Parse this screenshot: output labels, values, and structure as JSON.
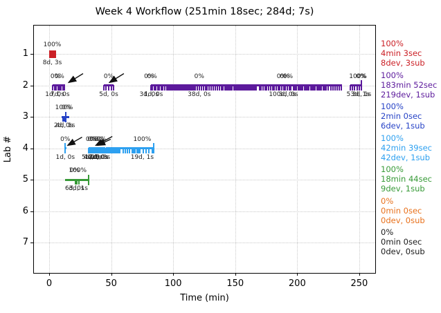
{
  "chart_data": {
    "type": "scatter",
    "subtype": "event-timeline",
    "title": "Week 4 Workflow (251min 18sec; 284d; 7s)",
    "xlabel": "Time (min)",
    "ylabel": "Lab #",
    "xticks": [
      0,
      50,
      100,
      150,
      200,
      250
    ],
    "rows": [
      1,
      2,
      3,
      4,
      5,
      6,
      7
    ],
    "xlim": [
      -12.3,
      264
    ],
    "grid": true,
    "legend_position": "right",
    "series": [
      {
        "lab": 1,
        "color": "#cb2026",
        "summary": {
          "percent": "100%",
          "time": "4min 3sec",
          "devsub": "8dev, 3sub"
        },
        "clusters": [
          {
            "start": 0,
            "end": 5.6,
            "tick_style": "center",
            "ticks": [
              {
                "from": 0.3,
                "to": 5.5,
                "step": 0.75
              }
            ],
            "tall": [],
            "pct_labels": [
              {
                "m": 2.5,
                "text": "100%"
              }
            ],
            "dev_labels": [
              {
                "m": 2.5,
                "text": "8d, 3s"
              }
            ]
          }
        ]
      },
      {
        "lab": 2,
        "color": "#5c1a9c",
        "summary": {
          "percent": "100%",
          "time": "183min 52sec",
          "devsub": "219dev, 1sub"
        },
        "clusters": [
          {
            "start": 3,
            "end": 12.6,
            "tick_style": "below",
            "ticks": [
              3,
              4.2,
              5.4,
              7,
              8.2,
              9.4,
              11,
              12.2
            ],
            "tall": [],
            "pct_labels": [
              {
                "m": 5,
                "text": "0%"
              },
              {
                "m": 8.2,
                "text": "0%"
              }
            ],
            "dev_labels": [
              {
                "m": 4.5,
                "text": "1d, 0s"
              },
              {
                "m": 8.8,
                "text": "7d, 0s"
              }
            ]
          },
          {
            "start": 44,
            "end": 52,
            "tick_style": "below",
            "ticks": [
              44,
              46,
              48,
              50,
              52
            ],
            "tall": [],
            "pct_labels": [
              {
                "m": 48,
                "text": "0%"
              }
            ],
            "dev_labels": [
              {
                "m": 48,
                "text": "5d, 0s"
              }
            ]
          },
          {
            "start": 82,
            "end": 236,
            "tick_style": "below",
            "ticks": [
              {
                "from": 82,
                "to": 96,
                "step": 1.4
              },
              {
                "from": 97,
                "to": 118,
                "step": 1.05
              },
              {
                "from": 119.5,
                "to": 142,
                "step": 1.6
              },
              {
                "from": 143,
                "to": 168,
                "step": 1.15
              },
              {
                "from": 169.5,
                "to": 196,
                "step": 1.5
              },
              {
                "from": 197,
                "to": 222,
                "step": 1.25
              },
              {
                "from": 223.5,
                "to": 236,
                "step": 1.7
              }
            ],
            "tall": [],
            "pct_labels": [
              {
                "m": 80.5,
                "text": "0%"
              },
              {
                "m": 83,
                "text": "0%"
              },
              {
                "m": 121,
                "text": "0%"
              },
              {
                "m": 187.5,
                "text": "0%"
              },
              {
                "m": 190,
                "text": "0%"
              },
              {
                "m": 192.5,
                "text": "0%"
              }
            ],
            "dev_labels": [
              {
                "m": 80.5,
                "text": "3d, 0s"
              },
              {
                "m": 84,
                "text": "1d, 0s"
              },
              {
                "m": 121,
                "text": "38d, 0s"
              },
              {
                "m": 188,
                "text": "100d, 0s"
              },
              {
                "m": 193,
                "text": "3d, 0s"
              }
            ]
          },
          {
            "start": 243,
            "end": 251.5,
            "tick_style": "below",
            "ticks": [
              243,
              244.7,
              246.4,
              248.1,
              249.8
            ],
            "tall": [
              251.5
            ],
            "pct_labels": [
              {
                "m": 249,
                "text": "100%"
              },
              {
                "m": 251.5,
                "text": "0%"
              }
            ],
            "dev_labels": [
              {
                "m": 249,
                "text": "53d, 1s"
              },
              {
                "m": 252,
                "text": "3d, 1s"
              }
            ]
          }
        ]
      },
      {
        "lab": 3,
        "color": "#2743c6",
        "summary": {
          "percent": "100%",
          "time": "2min 0sec",
          "devsub": "6dev, 1sub"
        },
        "clusters": [
          {
            "start": 10,
            "end": 16,
            "tick_style": "below",
            "ticks": [
              11,
              12.2
            ],
            "tall": [
              13.5
            ],
            "pct_labels": [
              {
                "m": 12,
                "text": "100%"
              },
              {
                "m": 13.8,
                "text": "0%"
              }
            ],
            "dev_labels": [
              {
                "m": 11.5,
                "text": "2d, 0s"
              },
              {
                "m": 13.2,
                "text": "4d, 1s"
              }
            ]
          }
        ]
      },
      {
        "lab": 4,
        "color": "#2da0f0",
        "summary": {
          "percent": "100%",
          "time": "42min 39sec",
          "devsub": "42dev, 1sub"
        },
        "clusters": [
          {
            "start": 12.6,
            "end": 13.4,
            "tick_style": "below",
            "ticks": [],
            "tall": [
              13
            ],
            "pct_labels": [
              {
                "m": 13,
                "text": "0%"
              }
            ],
            "dev_labels": [
              {
                "m": 13,
                "text": "1d, 0s"
              }
            ]
          },
          {
            "start": 32,
            "end": 45,
            "tick_style": "below",
            "ticks": [
              {
                "from": 32,
                "to": 44.8,
                "step": 0.8
              }
            ],
            "tall": [],
            "pct_labels": [
              {
                "m": 33.5,
                "text": "0%"
              },
              {
                "m": 35,
                "text": "0%"
              },
              {
                "m": 36.5,
                "text": "0%"
              },
              {
                "m": 40.5,
                "text": "0%"
              },
              {
                "m": 42,
                "text": "0%"
              }
            ],
            "dev_labels": [
              {
                "m": 34,
                "text": "5d, 0s"
              },
              {
                "m": 35.5,
                "text": "4d, 0s"
              },
              {
                "m": 38,
                "text": "12d, 0s"
              },
              {
                "m": 40,
                "text": "4d, 0s"
              },
              {
                "m": 41.5,
                "text": "1d, 0s"
              }
            ]
          },
          {
            "start": 46,
            "end": 84,
            "tick_style": "below",
            "ticks": [
              {
                "from": 46,
                "to": 58,
                "step": 1.1
              },
              {
                "from": 59.5,
                "to": 66,
                "step": 1.7
              },
              {
                "from": 67,
                "to": 74,
                "step": 1.2
              },
              {
                "from": 76,
                "to": 83,
                "step": 2.3
              }
            ],
            "tall": [
              84
            ],
            "pct_labels": [
              {
                "m": 75,
                "text": "100%"
              }
            ],
            "dev_labels": [
              {
                "m": 75,
                "text": "19d, 1s"
              }
            ]
          }
        ]
      },
      {
        "lab": 5,
        "color": "#379a37",
        "summary": {
          "percent": "100%",
          "time": "18min 44sec",
          "devsub": "9dev, 1sub"
        },
        "clusters": [
          {
            "start": 13,
            "end": 32,
            "tick_style": "below",
            "ticks": [
              21,
              22.5,
              24
            ],
            "tall": [
              32
            ],
            "pct_labels": [
              {
                "m": 20.5,
                "text": "0%"
              },
              {
                "m": 23,
                "text": "100%"
              }
            ],
            "dev_labels": [
              {
                "m": 20.5,
                "text": "6d, 0s"
              },
              {
                "m": 23.5,
                "text": "3d, 1s"
              }
            ]
          }
        ]
      },
      {
        "lab": 6,
        "color": "#e8711c",
        "summary": {
          "percent": "0%",
          "time": "0min 0sec",
          "devsub": "0dev, 0sub"
        },
        "clusters": []
      },
      {
        "lab": 7,
        "color": "#1a1a1a",
        "summary": {
          "percent": "0%",
          "time": "0min 0sec",
          "devsub": "0dev, 0sub"
        },
        "clusters": []
      }
    ],
    "arrows": [
      {
        "row": 2,
        "tip_m": 15.6,
        "dx": 21,
        "dy": -13
      },
      {
        "row": 2,
        "tip_m": 48.5,
        "dx": 21,
        "dy": -13
      },
      {
        "row": 4,
        "tip_m": 14.8,
        "dx": 21,
        "dy": -12
      },
      {
        "row": 4,
        "tip_m": 37.5,
        "dx": 24,
        "dy": -13
      },
      {
        "row": 4,
        "tip_m": 39,
        "dx": 19,
        "dy": -9
      }
    ]
  }
}
